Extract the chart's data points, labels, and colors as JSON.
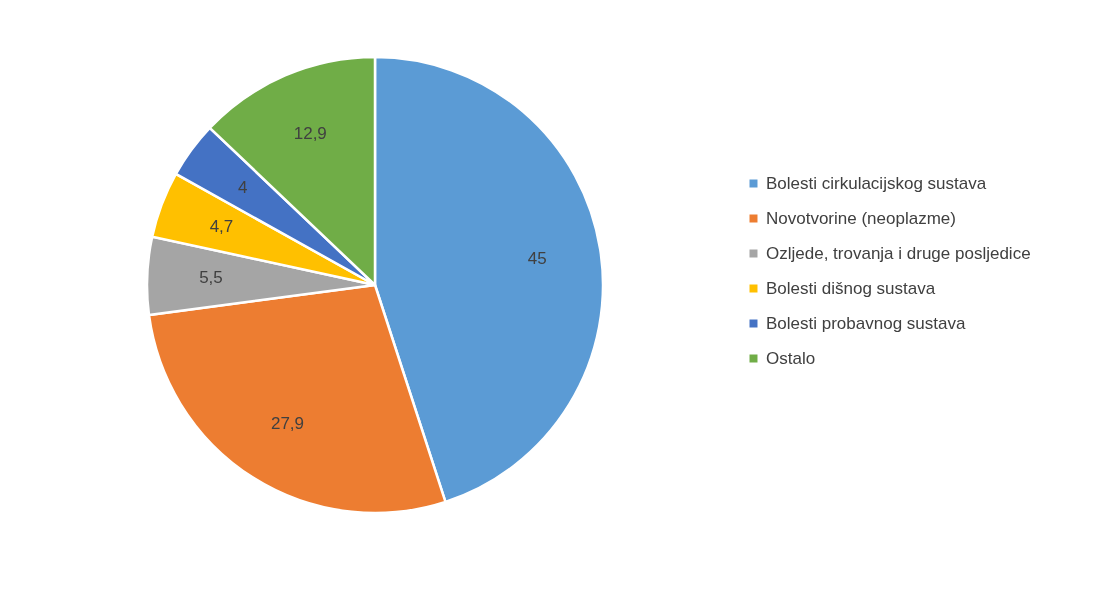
{
  "chart_data": {
    "type": "pie",
    "categories": [
      "Bolesti cirkulacijskog sustava",
      "Novotvorine (neoplazme)",
      "Ozljede, trovanja i druge posljedice",
      "Bolesti dišnog sustava",
      "Bolesti probavnog sustava",
      "Ostalo"
    ],
    "values": [
      45,
      27.9,
      5.5,
      4.7,
      4,
      12.9
    ],
    "value_labels": [
      "45",
      "27,9",
      "5,5",
      "4,7",
      "4",
      "12,9"
    ],
    "colors": [
      "#5b9bd5",
      "#ed7d31",
      "#a5a5a5",
      "#ffc000",
      "#4472c4",
      "#70ad47"
    ],
    "legend": "right"
  }
}
